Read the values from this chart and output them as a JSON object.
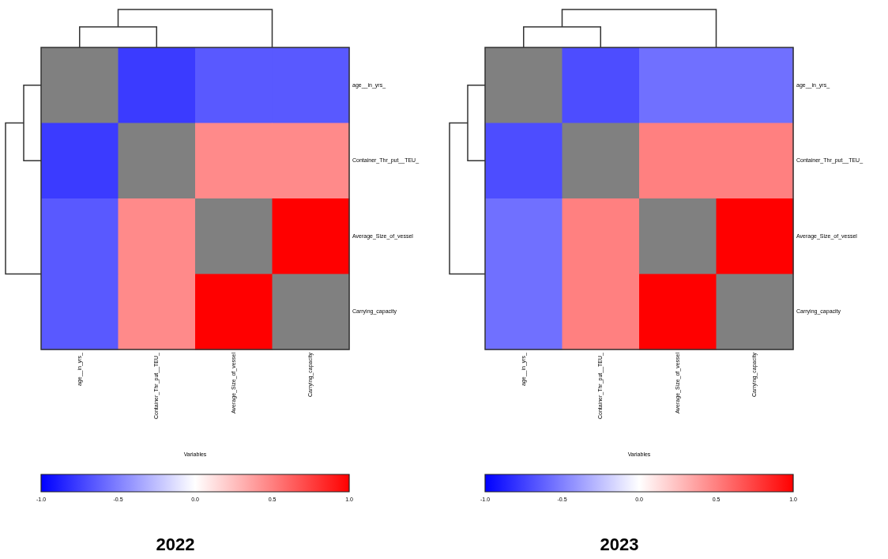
{
  "chart_data": [
    {
      "type": "heatmap",
      "title": "2022",
      "xlabel": "Variables",
      "categories": [
        "age__in_yrs_",
        "Container_Thr_put__TEU_",
        "Average_Size_of_vessel",
        "Carrying_capacity"
      ],
      "y_categories": [
        "age__in_yrs_",
        "Container_Thr_put__TEU_",
        "Average_Size_of_vessel",
        "Carrying_capacity"
      ],
      "cells": [
        [
          null,
          -0.77,
          -0.65,
          -0.65
        ],
        [
          -0.77,
          null,
          0.46,
          0.46
        ],
        [
          -0.65,
          0.46,
          null,
          1.0
        ],
        [
          -0.65,
          0.46,
          1.0,
          null
        ]
      ],
      "clim": [
        -1,
        1
      ],
      "cticks": [
        {
          "value": -1,
          "label": "-1.0"
        },
        {
          "value": -0.5,
          "label": "-0.5"
        },
        {
          "value": 0,
          "label": "0.0"
        },
        {
          "value": 0.5,
          "label": "0.5"
        },
        {
          "value": 1,
          "label": "1.0"
        }
      ]
    },
    {
      "type": "heatmap",
      "title": "2023",
      "xlabel": "Variables",
      "categories": [
        "age__in_yrs_",
        "Container_Thr_put__TEU_",
        "Average_Size_of_vessel",
        "Carrying_capacity"
      ],
      "y_categories": [
        "age__in_yrs_",
        "Container_Thr_put__TEU_",
        "Average_Size_of_vessel",
        "Carrying_capacity"
      ],
      "cells": [
        [
          null,
          -0.7,
          -0.56,
          -0.56
        ],
        [
          -0.7,
          null,
          0.5,
          0.5
        ],
        [
          -0.56,
          0.5,
          null,
          1.0
        ],
        [
          -0.56,
          0.5,
          1.0,
          null
        ]
      ],
      "clim": [
        -1,
        1
      ],
      "cticks": [
        {
          "value": -1,
          "label": "-1.0"
        },
        {
          "value": -0.5,
          "label": "-0.5"
        },
        {
          "value": 0,
          "label": "0.0"
        },
        {
          "value": 0.5,
          "label": "0.5"
        },
        {
          "value": 1,
          "label": "1.0"
        }
      ]
    }
  ]
}
